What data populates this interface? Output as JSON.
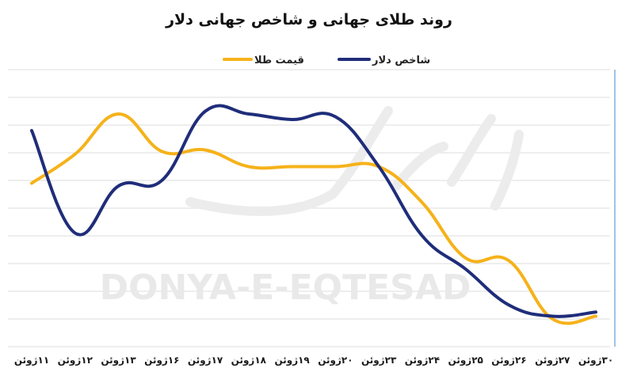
{
  "chart_data": {
    "type": "line",
    "title": "روند طلای جهانی و شاخص جهانی دلار",
    "xlabel": "",
    "ylabel": "",
    "categories": [
      "۱۱ژوئن",
      "۱۲ژوئن",
      "۱۳ژوئن",
      "۱۶ژوئن",
      "۱۷ژوئن",
      "۱۸ژوئن",
      "۱۹ژوئن",
      "۲۰ژوئن",
      "۲۳ژوئن",
      "۲۴ژوئن",
      "۲۵ژوئن",
      "۲۶ژوئن",
      "۲۷ژوئن",
      "۳۰ژوئن"
    ],
    "series": [
      {
        "name": "قیمت طلا",
        "color": "#f5b21a",
        "values": [
          5.9,
          6.95,
          8.4,
          7.05,
          7.1,
          6.5,
          6.5,
          6.5,
          6.5,
          5.2,
          3.2,
          3.1,
          1.0,
          1.1
        ]
      },
      {
        "name": "شاخص دلار",
        "color": "#1f2d7a",
        "values": [
          7.8,
          4.1,
          5.8,
          6.0,
          8.5,
          8.4,
          8.2,
          8.3,
          6.5,
          4.0,
          2.8,
          1.5,
          1.1,
          1.25
        ]
      }
    ],
    "ylim": [
      0,
      10
    ],
    "grid": true,
    "legend": "top-center",
    "watermark": "DONYA-E-EQTESAD"
  }
}
